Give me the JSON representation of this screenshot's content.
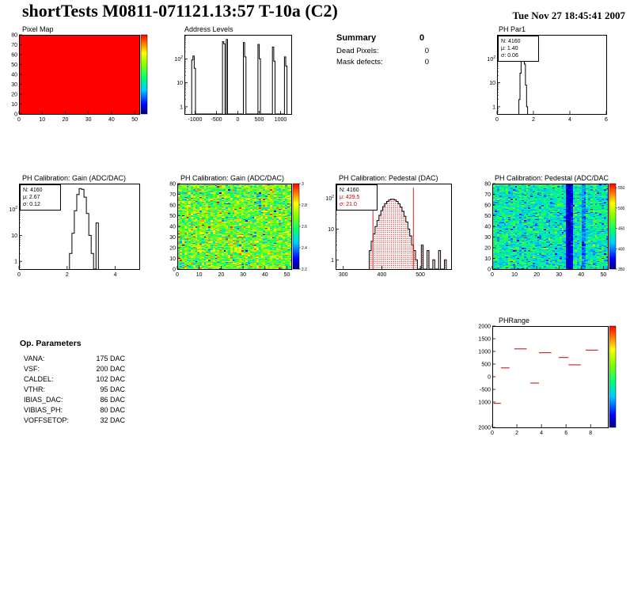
{
  "header": {
    "title": "shortTests M0811-071121.13:57 T-10a (C2)",
    "timestamp": "Tue Nov 27 18:45:41 2007"
  },
  "summary": {
    "title": "Summary",
    "value": "0",
    "rows": [
      {
        "label": "Dead Pixels:",
        "value": "0"
      },
      {
        "label": "Mask defects:",
        "value": "0"
      }
    ]
  },
  "op_parameters": {
    "title": "Op. Parameters",
    "rows": [
      {
        "label": "VANA:",
        "value": "175 DAC"
      },
      {
        "label": "VSF:",
        "value": "200 DAC"
      },
      {
        "label": "CALDEL:",
        "value": "102 DAC"
      },
      {
        "label": "VTHR:",
        "value": "95 DAC"
      },
      {
        "label": "IBIAS_DAC:",
        "value": "86 DAC"
      },
      {
        "label": "VIBIAS_PH:",
        "value": "80 DAC"
      },
      {
        "label": "VOFFSETOP:",
        "value": "32 DAC"
      }
    ]
  },
  "colors": {
    "accent_red": "#cc0000",
    "marker_red": "#d42a2a",
    "pixel_map_fill": "#ff0000"
  },
  "chart_data": [
    {
      "id": "pixel_map",
      "type": "heatmap",
      "title": "Pixel Map",
      "x_range": [
        0,
        52
      ],
      "y_range": [
        0,
        80
      ],
      "xticks": [
        0,
        10,
        20,
        30,
        40,
        50
      ],
      "yticks": [
        0,
        10,
        20,
        30,
        40,
        50,
        60,
        70,
        80
      ],
      "nx": 52,
      "ny": 80,
      "value_mu": 10,
      "value_sigma": 0,
      "value_min": 0,
      "value_max": 10,
      "seed": 1,
      "colorbar": {
        "labels": []
      }
    },
    {
      "id": "address_levels",
      "type": "hist",
      "title": "Address Levels",
      "x_range": [
        -1250,
        1250
      ],
      "xticks": [
        -1000,
        -500,
        0,
        500,
        1000
      ],
      "y_scale": "log",
      "y_range": [
        0.5,
        1000
      ],
      "yticks": [
        {
          "v": 100,
          "label": "10",
          "sup": "2"
        },
        {
          "v": 10,
          "label": "10"
        },
        {
          "v": 1,
          "label": "1"
        }
      ],
      "bin_width": 30,
      "bins": [
        [
          -1065,
          90
        ],
        [
          -1035,
          130
        ],
        [
          -1005,
          40
        ],
        [
          -345,
          520
        ],
        [
          -315,
          420
        ],
        [
          -255,
          640
        ],
        [
          145,
          480
        ],
        [
          175,
          120
        ],
        [
          485,
          400
        ],
        [
          515,
          100
        ],
        [
          825,
          310
        ],
        [
          855,
          80
        ],
        [
          1105,
          120
        ],
        [
          1135,
          50
        ]
      ]
    },
    {
      "id": "ph_par1",
      "type": "hist",
      "title": "PH Par1",
      "x_range": [
        0,
        6
      ],
      "xticks": [
        0,
        2,
        4,
        6
      ],
      "y_scale": "log",
      "y_range": [
        0.5,
        1000
      ],
      "yticks": [
        {
          "v": 100,
          "label": "10",
          "sup": "2"
        },
        {
          "v": 10,
          "label": "10"
        },
        {
          "v": 1,
          "label": "1"
        }
      ],
      "bin_width": 0.06,
      "bins": [
        [
          1.23,
          2
        ],
        [
          1.29,
          25
        ],
        [
          1.35,
          300
        ],
        [
          1.41,
          520
        ],
        [
          1.47,
          380
        ],
        [
          1.53,
          60
        ],
        [
          1.59,
          8
        ],
        [
          1.65,
          1
        ]
      ],
      "stats": [
        {
          "text": "N: 4160",
          "color": "#000000"
        },
        {
          "text": "μ: 1.40",
          "color": "#000000"
        },
        {
          "text": "σ: 0.06",
          "color": "#000000"
        }
      ]
    },
    {
      "id": "gain_hist",
      "type": "hist",
      "title": "PH Calibration: Gain (ADC/DAC)",
      "x_range": [
        0,
        5
      ],
      "xticks": [
        0,
        2,
        4
      ],
      "y_scale": "log",
      "y_range": [
        0.5,
        1000
      ],
      "yticks": [
        {
          "v": 100,
          "label": "10",
          "sup": "2"
        },
        {
          "v": 10,
          "label": "10"
        },
        {
          "v": 1,
          "label": "1"
        }
      ],
      "bin_width": 0.1,
      "bins": [
        [
          2.15,
          2
        ],
        [
          2.25,
          12
        ],
        [
          2.35,
          90
        ],
        [
          2.45,
          380
        ],
        [
          2.55,
          640
        ],
        [
          2.65,
          600
        ],
        [
          2.75,
          300
        ],
        [
          2.85,
          70
        ],
        [
          2.95,
          10
        ],
        [
          3.05,
          2
        ],
        [
          3.25,
          30
        ]
      ],
      "stats": [
        {
          "text": "N: 4160",
          "color": "#000000"
        },
        {
          "text": "μ: 2.67",
          "color": "#000000"
        },
        {
          "text": "σ: 0.12",
          "color": "#000000"
        }
      ]
    },
    {
      "id": "gain_map",
      "type": "heatmap",
      "title": "PH Calibration: Gain (ADC/DAC)",
      "x_range": [
        0,
        52
      ],
      "y_range": [
        0,
        80
      ],
      "xticks": [
        0,
        10,
        20,
        30,
        40,
        50
      ],
      "yticks": [
        0,
        10,
        20,
        30,
        40,
        50,
        60,
        70,
        80
      ],
      "nx": 52,
      "ny": 80,
      "value_mu": 2.67,
      "value_sigma": 0.12,
      "value_min": 2.2,
      "value_max": 3.0,
      "seed": 7,
      "colorbar": {
        "labels": [
          {
            "v": 3.0,
            "label": "3"
          },
          {
            "v": 2.8,
            "label": "2.8"
          },
          {
            "v": 2.6,
            "label": "2.6"
          },
          {
            "v": 2.4,
            "label": "2.4"
          },
          {
            "v": 2.2,
            "label": "2.2"
          }
        ]
      }
    },
    {
      "id": "pedestal_hist",
      "type": "hist",
      "title": "PH Calibration: Pedestal (DAC)",
      "x_range": [
        280,
        580
      ],
      "xticks": [
        300,
        400,
        500
      ],
      "y_scale": "log",
      "y_range": [
        0.5,
        300
      ],
      "yticks": [
        {
          "v": 100,
          "label": "10",
          "sup": "2"
        },
        {
          "v": 10,
          "label": "10"
        },
        {
          "v": 1,
          "label": "1"
        }
      ],
      "bin_width": 5,
      "fill": "dots",
      "vlines": [
        377,
        482
      ],
      "vline_color": "#e02020",
      "bins": [
        [
          370,
          2
        ],
        [
          375,
          4
        ],
        [
          380,
          7
        ],
        [
          385,
          12
        ],
        [
          390,
          19
        ],
        [
          395,
          28
        ],
        [
          400,
          40
        ],
        [
          405,
          54
        ],
        [
          410,
          67
        ],
        [
          415,
          79
        ],
        [
          420,
          88
        ],
        [
          425,
          93
        ],
        [
          430,
          93
        ],
        [
          435,
          88
        ],
        [
          440,
          79
        ],
        [
          445,
          66
        ],
        [
          450,
          52
        ],
        [
          455,
          38
        ],
        [
          460,
          26
        ],
        [
          465,
          17
        ],
        [
          470,
          10
        ],
        [
          475,
          6
        ],
        [
          480,
          3
        ],
        [
          485,
          2
        ],
        [
          490,
          1
        ],
        [
          505,
          3
        ],
        [
          520,
          2
        ],
        [
          535,
          1
        ],
        [
          550,
          2
        ],
        [
          565,
          1
        ]
      ],
      "stats": [
        {
          "text": "N: 4160",
          "color": "#000000"
        },
        {
          "text": "μ: 429.5",
          "color": "#cc0000"
        },
        {
          "text": "σ: 21.0",
          "color": "#cc0000"
        }
      ]
    },
    {
      "id": "pedestal_map",
      "type": "heatmap",
      "title": "PH Calibration: Pedestal (ADC/DAC",
      "x_range": [
        0,
        52
      ],
      "y_range": [
        0,
        80
      ],
      "xticks": [
        0,
        10,
        20,
        30,
        40,
        50
      ],
      "yticks": [
        0,
        10,
        20,
        30,
        40,
        50,
        60,
        70,
        80
      ],
      "nx": 52,
      "ny": 80,
      "value_mu": 432,
      "value_sigma": 22,
      "value_min": 350,
      "value_max": 560,
      "column_overrides": {
        "33": [
          368,
          8
        ],
        "34": [
          365,
          8
        ],
        "35": [
          372,
          10
        ],
        "40": [
          398,
          12
        ],
        "41": [
          400,
          12
        ]
      },
      "seed": 13,
      "colorbar": {
        "labels": [
          {
            "v": 550,
            "label": "550"
          },
          {
            "v": 500,
            "label": "500"
          },
          {
            "v": 450,
            "label": "450"
          },
          {
            "v": 400,
            "label": "400"
          },
          {
            "v": 350,
            "label": "350"
          }
        ]
      }
    },
    {
      "id": "ph_range",
      "type": "segments",
      "title": "PHRange",
      "x_range": [
        0,
        9.4
      ],
      "xticks": [
        0,
        2,
        4,
        6,
        8
      ],
      "y_range": [
        -2000,
        2000
      ],
      "yticks": [
        {
          "v": 2000,
          "label": "2000"
        },
        {
          "v": 1500,
          "label": "1500"
        },
        {
          "v": 1000,
          "label": "1000"
        },
        {
          "v": 500,
          "label": "500"
        },
        {
          "v": 0,
          "label": "0"
        },
        {
          "v": -500,
          "label": "-500"
        },
        {
          "v": -1000,
          "label": "1000"
        },
        {
          "v": -2000,
          "label": "2000"
        }
      ],
      "color": "#d42a2a",
      "segments": [
        [
          0.1,
          0.7,
          -1050
        ],
        [
          0.7,
          1.4,
          350
        ],
        [
          1.8,
          2.8,
          1100
        ],
        [
          3.1,
          3.8,
          -250
        ],
        [
          3.8,
          4.8,
          950
        ],
        [
          5.4,
          6.2,
          760
        ],
        [
          6.2,
          7.2,
          470
        ],
        [
          7.6,
          8.6,
          1050
        ]
      ],
      "colorbar": {
        "labels": []
      }
    }
  ]
}
